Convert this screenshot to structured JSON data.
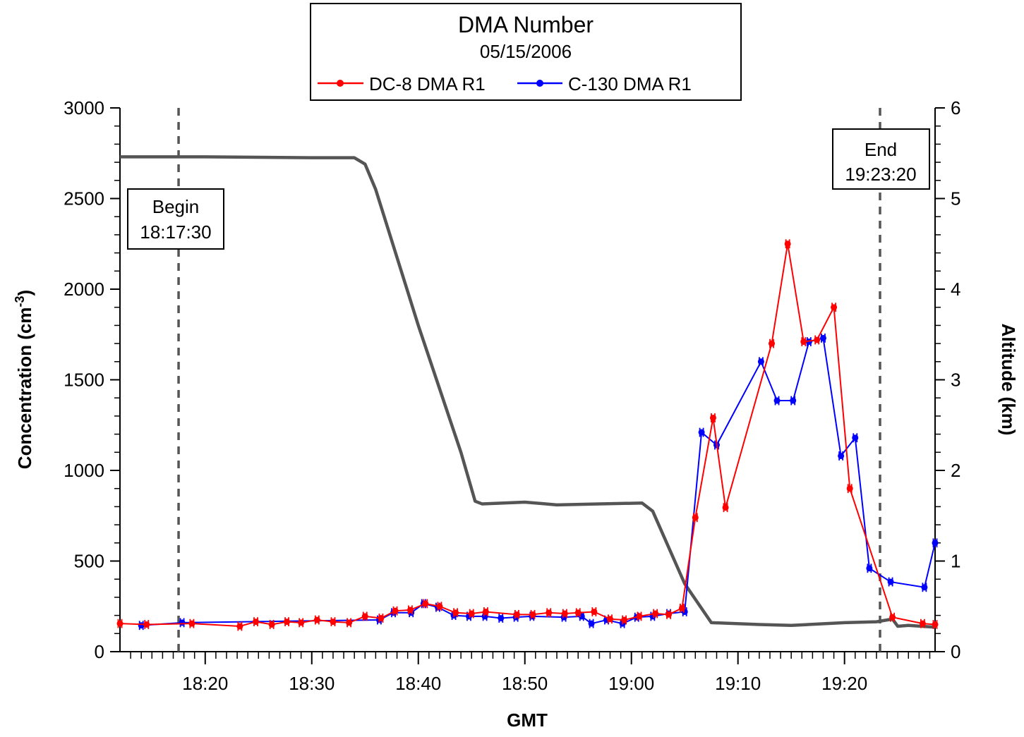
{
  "chart_data": {
    "type": "line",
    "title": "DMA Number",
    "subtitle": "05/15/2006",
    "xlabel": "GMT",
    "ylabel": "Concentration (cm",
    "ylabel_exponent": "-3",
    "ylabel_close": ")",
    "y2label": "Altitude  (km)",
    "xlim": [
      "18:12:00",
      "19:28:30"
    ],
    "ylim": [
      0,
      3000
    ],
    "y2lim": [
      0,
      6
    ],
    "x_ticks": [
      "18:20",
      "18:30",
      "18:40",
      "18:50",
      "19:00",
      "19:10",
      "19:20"
    ],
    "y_ticks": [
      "0",
      "500",
      "1000",
      "1500",
      "2000",
      "2500",
      "3000"
    ],
    "y2_ticks": [
      "0",
      "1",
      "2",
      "3",
      "4",
      "5",
      "6"
    ],
    "legend_placement": "top-center",
    "grid": false,
    "series": [
      {
        "name": "DC-8 DMA R1",
        "color": "#ff0000",
        "axis": "left",
        "points": [
          [
            "18:12:00",
            155
          ],
          [
            "18:14:30",
            150
          ],
          [
            "18:18:45",
            155
          ],
          [
            "18:23:15",
            140
          ],
          [
            "18:24:45",
            165
          ],
          [
            "18:26:15",
            150
          ],
          [
            "18:27:40",
            165
          ],
          [
            "18:29:00",
            160
          ],
          [
            "18:30:30",
            175
          ],
          [
            "18:32:00",
            165
          ],
          [
            "18:33:30",
            160
          ],
          [
            "18:35:00",
            195
          ],
          [
            "18:36:30",
            185
          ],
          [
            "18:37:50",
            225
          ],
          [
            "18:39:15",
            230
          ],
          [
            "18:40:40",
            265
          ],
          [
            "18:42:00",
            250
          ],
          [
            "18:43:30",
            215
          ],
          [
            "18:45:00",
            210
          ],
          [
            "18:46:20",
            220
          ],
          [
            "18:49:15",
            205
          ],
          [
            "18:50:45",
            205
          ],
          [
            "18:52:15",
            215
          ],
          [
            "18:53:45",
            210
          ],
          [
            "18:55:00",
            215
          ],
          [
            "18:56:30",
            220
          ],
          [
            "18:58:00",
            180
          ],
          [
            "18:59:20",
            175
          ],
          [
            "19:00:45",
            195
          ],
          [
            "19:02:15",
            210
          ],
          [
            "19:03:30",
            205
          ],
          [
            "19:04:45",
            240
          ],
          [
            "19:06:00",
            740
          ],
          [
            "19:07:40",
            1290
          ],
          [
            "19:08:50",
            795
          ],
          [
            "19:13:10",
            1700
          ],
          [
            "19:14:40",
            2250
          ],
          [
            "19:16:10",
            1710
          ],
          [
            "19:17:25",
            1720
          ],
          [
            "19:19:00",
            1900
          ],
          [
            "19:20:30",
            900
          ],
          [
            "19:24:30",
            190
          ],
          [
            "19:27:20",
            155
          ],
          [
            "19:28:30",
            150
          ]
        ]
      },
      {
        "name": "C-130 DMA R1",
        "color": "#0000ff",
        "axis": "left",
        "points": [
          [
            "18:14:00",
            145
          ],
          [
            "18:17:50",
            160
          ],
          [
            "18:36:20",
            175
          ],
          [
            "18:37:40",
            215
          ],
          [
            "18:39:20",
            215
          ],
          [
            "18:40:30",
            265
          ],
          [
            "18:41:50",
            245
          ],
          [
            "18:43:20",
            200
          ],
          [
            "18:44:45",
            195
          ],
          [
            "18:46:15",
            195
          ],
          [
            "18:47:45",
            185
          ],
          [
            "18:49:10",
            190
          ],
          [
            "18:50:40",
            195
          ],
          [
            "18:53:40",
            190
          ],
          [
            "18:55:20",
            195
          ],
          [
            "18:56:15",
            155
          ],
          [
            "18:57:40",
            175
          ],
          [
            "18:59:10",
            155
          ],
          [
            "19:00:30",
            190
          ],
          [
            "19:02:00",
            195
          ],
          [
            "19:03:30",
            210
          ],
          [
            "19:05:00",
            220
          ],
          [
            "19:06:35",
            1210
          ],
          [
            "19:08:00",
            1140
          ],
          [
            "19:12:10",
            1600
          ],
          [
            "19:13:40",
            1385
          ],
          [
            "19:15:10",
            1385
          ],
          [
            "19:16:40",
            1710
          ],
          [
            "19:18:00",
            1730
          ],
          [
            "19:19:40",
            1080
          ],
          [
            "19:21:00",
            1180
          ],
          [
            "19:22:20",
            460
          ],
          [
            "19:24:20",
            385
          ],
          [
            "19:27:30",
            355
          ],
          [
            "19:28:30",
            600
          ]
        ]
      },
      {
        "name": "Altitude",
        "color": "#555555",
        "axis": "right",
        "points": [
          [
            "18:12:00",
            5.46
          ],
          [
            "18:14:00",
            5.46
          ],
          [
            "18:20:00",
            5.46
          ],
          [
            "18:30:00",
            5.45
          ],
          [
            "18:34:00",
            5.45
          ],
          [
            "18:35:00",
            5.38
          ],
          [
            "18:36:00",
            5.1
          ],
          [
            "18:40:00",
            3.6
          ],
          [
            "18:44:00",
            2.2
          ],
          [
            "18:45:20",
            1.66
          ],
          [
            "18:46:00",
            1.63
          ],
          [
            "18:50:00",
            1.65
          ],
          [
            "18:53:00",
            1.62
          ],
          [
            "18:57:00",
            1.63
          ],
          [
            "19:01:00",
            1.64
          ],
          [
            "19:02:00",
            1.55
          ],
          [
            "19:05:00",
            0.75
          ],
          [
            "19:07:30",
            0.32
          ],
          [
            "19:12:00",
            0.3
          ],
          [
            "19:15:00",
            0.29
          ],
          [
            "19:20:00",
            0.32
          ],
          [
            "19:23:00",
            0.33
          ],
          [
            "19:24:30",
            0.36
          ],
          [
            "19:25:00",
            0.28
          ],
          [
            "19:26:00",
            0.29
          ],
          [
            "19:28:30",
            0.27
          ]
        ]
      }
    ],
    "annotations": [
      {
        "lines": [
          "Begin",
          "18:17:30"
        ],
        "time": "18:17:30"
      },
      {
        "lines": [
          "End",
          "19:23:20"
        ],
        "time": "19:23:20"
      }
    ],
    "error_bar_halfwidth": 25
  }
}
